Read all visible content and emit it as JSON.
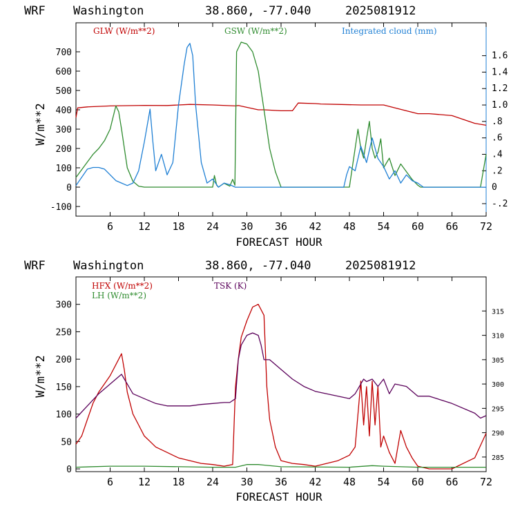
{
  "chart_data": [
    {
      "type": "line",
      "header": {
        "model": "WRF",
        "location": "Washington",
        "coords": "38.860, -77.040",
        "run": "2025081912"
      },
      "xlabel": "FORECAST HOUR",
      "ylabel": "W/m**2",
      "xlim": [
        0,
        72
      ],
      "ylim": [
        -150,
        850
      ],
      "y2lim": [
        -0.352,
        2.0
      ],
      "xticks": [
        6,
        12,
        18,
        24,
        30,
        36,
        42,
        48,
        54,
        60,
        66,
        72
      ],
      "yticks": [
        -100,
        0,
        100,
        200,
        300,
        400,
        500,
        600,
        700
      ],
      "y2ticks": [
        "-.2",
        "0",
        ".2",
        ".4",
        ".6",
        ".8",
        "1.0",
        "1.2",
        "1.4",
        "1.6"
      ],
      "y2tick_values": [
        -0.2,
        0,
        0.2,
        0.4,
        0.6,
        0.8,
        1.0,
        1.2,
        1.4,
        1.6
      ],
      "series": [
        {
          "name": "GLW (W/m**2)",
          "axis": "left",
          "color": "#c00000",
          "x": [
            0,
            0.3,
            2,
            6,
            12,
            16,
            18,
            20,
            24,
            28,
            28.5,
            32,
            33,
            36,
            38,
            39,
            42,
            43,
            46,
            50,
            54,
            56,
            60,
            62,
            66,
            70,
            72
          ],
          "y": [
            360,
            410,
            415,
            420,
            423,
            422,
            425,
            428,
            425,
            420,
            422,
            400,
            400,
            395,
            395,
            435,
            432,
            430,
            428,
            425,
            425,
            410,
            380,
            380,
            370,
            330,
            320
          ]
        },
        {
          "name": "GSW (W/m**2)",
          "axis": "left",
          "color": "#2e8b2e",
          "x": [
            0,
            1,
            2,
            3,
            4,
            5,
            6,
            6.5,
            7,
            7.5,
            8,
            8.5,
            9,
            10,
            11,
            12,
            24,
            24.3,
            24.7,
            25,
            26,
            27,
            27.5,
            27.9,
            28.2,
            29,
            30,
            31,
            32,
            32.5,
            33,
            33.5,
            34,
            35,
            36,
            48,
            49.5,
            50,
            50.5,
            51,
            51.5,
            52,
            52.5,
            53,
            53.5,
            54,
            55,
            56,
            57,
            58,
            59,
            60,
            60.5,
            71,
            72
          ],
          "y": [
            50,
            90,
            130,
            170,
            200,
            240,
            300,
            360,
            420,
            390,
            300,
            200,
            100,
            30,
            5,
            0,
            0,
            60,
            10,
            0,
            20,
            5,
            40,
            10,
            700,
            750,
            740,
            700,
            600,
            500,
            400,
            300,
            200,
            80,
            0,
            0,
            300,
            200,
            150,
            250,
            340,
            200,
            150,
            180,
            250,
            100,
            150,
            60,
            120,
            80,
            40,
            10,
            0,
            0,
            170
          ]
        },
        {
          "name": "Integrated cloud (mm)",
          "axis": "right",
          "color": "#1e7fd4",
          "x": [
            0,
            1,
            2,
            3,
            4,
            5,
            6,
            7,
            8,
            9,
            10,
            11,
            12,
            13,
            13.5,
            14,
            15,
            16,
            17,
            18,
            19,
            19.5,
            20,
            20.5,
            21,
            22,
            23,
            24,
            25,
            26,
            27,
            28,
            29,
            30,
            47,
            47.5,
            48,
            49,
            50,
            51,
            52,
            53,
            54,
            55,
            56,
            57,
            58,
            59,
            60,
            61,
            72
          ],
          "y": [
            0.02,
            0.12,
            0.22,
            0.24,
            0.24,
            0.22,
            0.15,
            0.08,
            0.05,
            0.02,
            0.05,
            0.2,
            0.55,
            0.95,
            0.55,
            0.2,
            0.4,
            0.15,
            0.3,
            1.0,
            1.5,
            1.7,
            1.75,
            1.6,
            1.0,
            0.3,
            0.05,
            0.1,
            0.0,
            0.05,
            0.03,
            0.0,
            0.0,
            0.0,
            0.0,
            0.15,
            0.25,
            0.2,
            0.5,
            0.3,
            0.6,
            0.35,
            0.25,
            0.1,
            0.2,
            0.05,
            0.15,
            0.08,
            0.05,
            0.0,
            0.0
          ]
        }
      ]
    },
    {
      "type": "line",
      "header": {
        "model": "WRF",
        "location": "Washington",
        "coords": "38.860, -77.040",
        "run": "2025081912"
      },
      "xlabel": "FORECAST HOUR",
      "ylabel": "W/m**2",
      "xlim": [
        0,
        72
      ],
      "ylim": [
        -5,
        350
      ],
      "y2lim": [
        282,
        322
      ],
      "xticks": [
        6,
        12,
        18,
        24,
        30,
        36,
        42,
        48,
        54,
        60,
        66,
        72
      ],
      "yticks": [
        0,
        50,
        100,
        150,
        200,
        250,
        300
      ],
      "y2ticks": [
        "285",
        "290",
        "295",
        "300",
        "305",
        "310",
        "315"
      ],
      "y2tick_values": [
        285,
        290,
        295,
        300,
        305,
        310,
        315
      ],
      "series": [
        {
          "name": "HFX (W/m**2)",
          "axis": "left",
          "color": "#c00000",
          "x": [
            0,
            1,
            2,
            3,
            4,
            5,
            6,
            7,
            8,
            8.5,
            9,
            10,
            11,
            12,
            13,
            14,
            16,
            18,
            20,
            22,
            24,
            26,
            27.5,
            28,
            28.5,
            29,
            30,
            31,
            32,
            33,
            33.5,
            34,
            35,
            36,
            38,
            40,
            42,
            44,
            46,
            48,
            49,
            50,
            50.5,
            51,
            51.5,
            52,
            52.5,
            53,
            53.5,
            54,
            55,
            56,
            57,
            58,
            59,
            60,
            62,
            66,
            70,
            72
          ],
          "y": [
            45,
            60,
            90,
            120,
            140,
            155,
            170,
            190,
            210,
            180,
            140,
            100,
            80,
            60,
            50,
            40,
            30,
            20,
            15,
            10,
            8,
            5,
            8,
            150,
            200,
            240,
            270,
            295,
            300,
            280,
            150,
            90,
            40,
            15,
            10,
            8,
            5,
            10,
            15,
            25,
            40,
            160,
            80,
            150,
            60,
            160,
            80,
            150,
            40,
            60,
            30,
            10,
            70,
            40,
            20,
            5,
            0,
            0,
            20,
            65
          ]
        },
        {
          "name": "LH (W/m**2)",
          "axis": "left",
          "color": "#2e8b2e",
          "x": [
            0,
            6,
            12,
            24,
            28,
            30,
            32,
            36,
            48,
            52,
            54,
            60,
            72
          ],
          "y": [
            3,
            5,
            5,
            3,
            3,
            8,
            8,
            4,
            3,
            6,
            5,
            3,
            3
          ]
        },
        {
          "name": "TSK (K)",
          "axis": "right",
          "color": "#5a005a",
          "x": [
            0,
            2,
            4,
            6,
            7,
            8,
            9,
            10,
            12,
            14,
            16,
            18,
            20,
            22,
            24,
            26,
            27,
            28,
            28.5,
            29,
            30,
            31,
            32,
            32.5,
            33,
            34,
            36,
            38,
            40,
            42,
            44,
            46,
            48,
            49,
            50,
            50.5,
            51,
            52,
            53,
            54,
            55,
            56,
            58,
            60,
            62,
            66,
            70,
            71,
            72
          ],
          "y": [
            293,
            295.5,
            298,
            300,
            301,
            302,
            300,
            298,
            297,
            296,
            295.5,
            295.5,
            295.5,
            295.8,
            296,
            296.2,
            296.2,
            297,
            305,
            308,
            310,
            310.5,
            310,
            308,
            305,
            305,
            303,
            301,
            299.5,
            298.5,
            298,
            297.5,
            297,
            298,
            300,
            301,
            300.5,
            301,
            299.5,
            301,
            298,
            300,
            299.5,
            297.5,
            297.5,
            296,
            294,
            293,
            293.5
          ]
        }
      ]
    }
  ]
}
